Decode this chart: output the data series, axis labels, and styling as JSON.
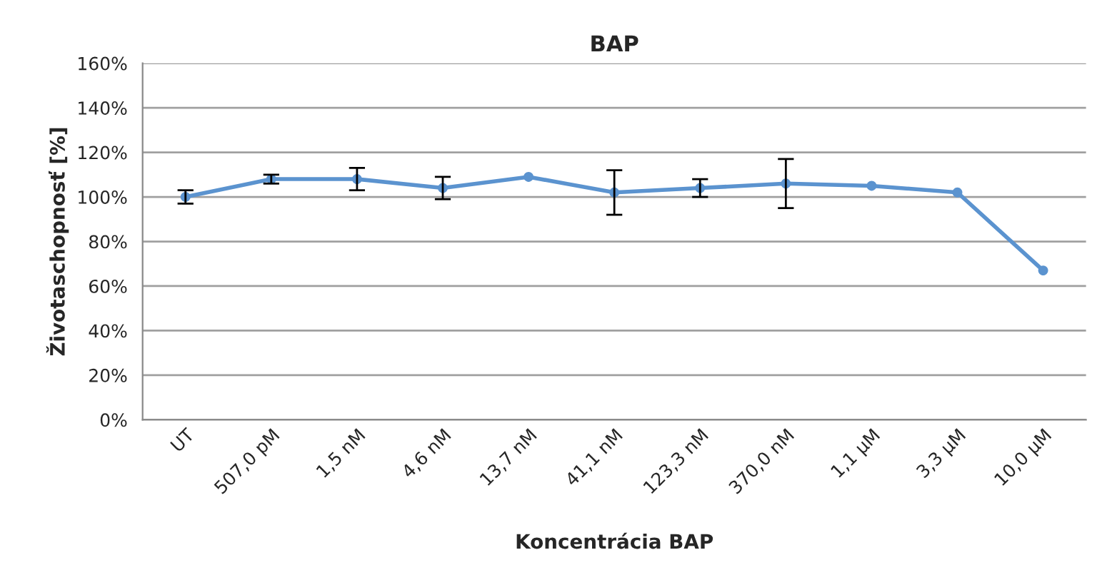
{
  "chart_data": {
    "type": "line",
    "title": "BAP",
    "xlabel": "Koncentrácia BAP",
    "ylabel": "Životaschopnosť [%]",
    "categories": [
      "UT",
      "507,0 pM",
      "1,5 nM",
      "4,6 nM",
      "13,7 nM",
      "41,1 nM",
      "123,3 nM",
      "370,0 nM",
      "1,1 µM",
      "3,3 µM",
      "10,0 µM"
    ],
    "series": [
      {
        "color": "#5b93cf",
        "values": [
          100,
          108,
          108,
          104,
          109,
          102,
          104,
          106,
          105,
          102,
          67
        ],
        "errors": [
          3,
          2,
          5,
          5,
          null,
          10,
          4,
          11,
          null,
          null,
          null
        ]
      }
    ],
    "ylim": [
      0,
      160
    ],
    "yticks": [
      {
        "value": 0,
        "label": "0%"
      },
      {
        "value": 20,
        "label": "20%"
      },
      {
        "value": 40,
        "label": "40%"
      },
      {
        "value": 60,
        "label": "60%"
      },
      {
        "value": 80,
        "label": "80%"
      },
      {
        "value": 100,
        "label": "100%"
      },
      {
        "value": 120,
        "label": "120%"
      },
      {
        "value": 140,
        "label": "140%"
      },
      {
        "value": 160,
        "label": "160%"
      }
    ],
    "grid": "y",
    "marker": "circle",
    "line_style": "solid",
    "legend": false
  }
}
